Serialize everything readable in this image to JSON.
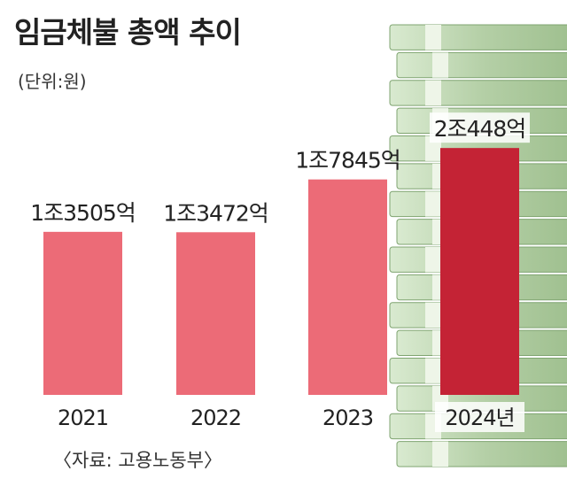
{
  "title": "임금체불 총액 추이",
  "unit": "(단위:원)",
  "source": "〈자료: 고용노동부〉",
  "chart_data": {
    "type": "bar",
    "title": "임금체불 총액 추이",
    "categories": [
      "2021",
      "2022",
      "2023",
      "2024년"
    ],
    "values": [
      13505,
      13472,
      17845,
      20448
    ],
    "value_labels": [
      "1조3505억",
      "1조3472억",
      "1조7845억",
      "2조448억"
    ],
    "unit": "억원",
    "ylim": [
      0,
      22000
    ],
    "grid": false,
    "legend": "none",
    "colors": [
      "#ec6b77",
      "#ec6b77",
      "#ec6b77",
      "#c42335"
    ]
  }
}
